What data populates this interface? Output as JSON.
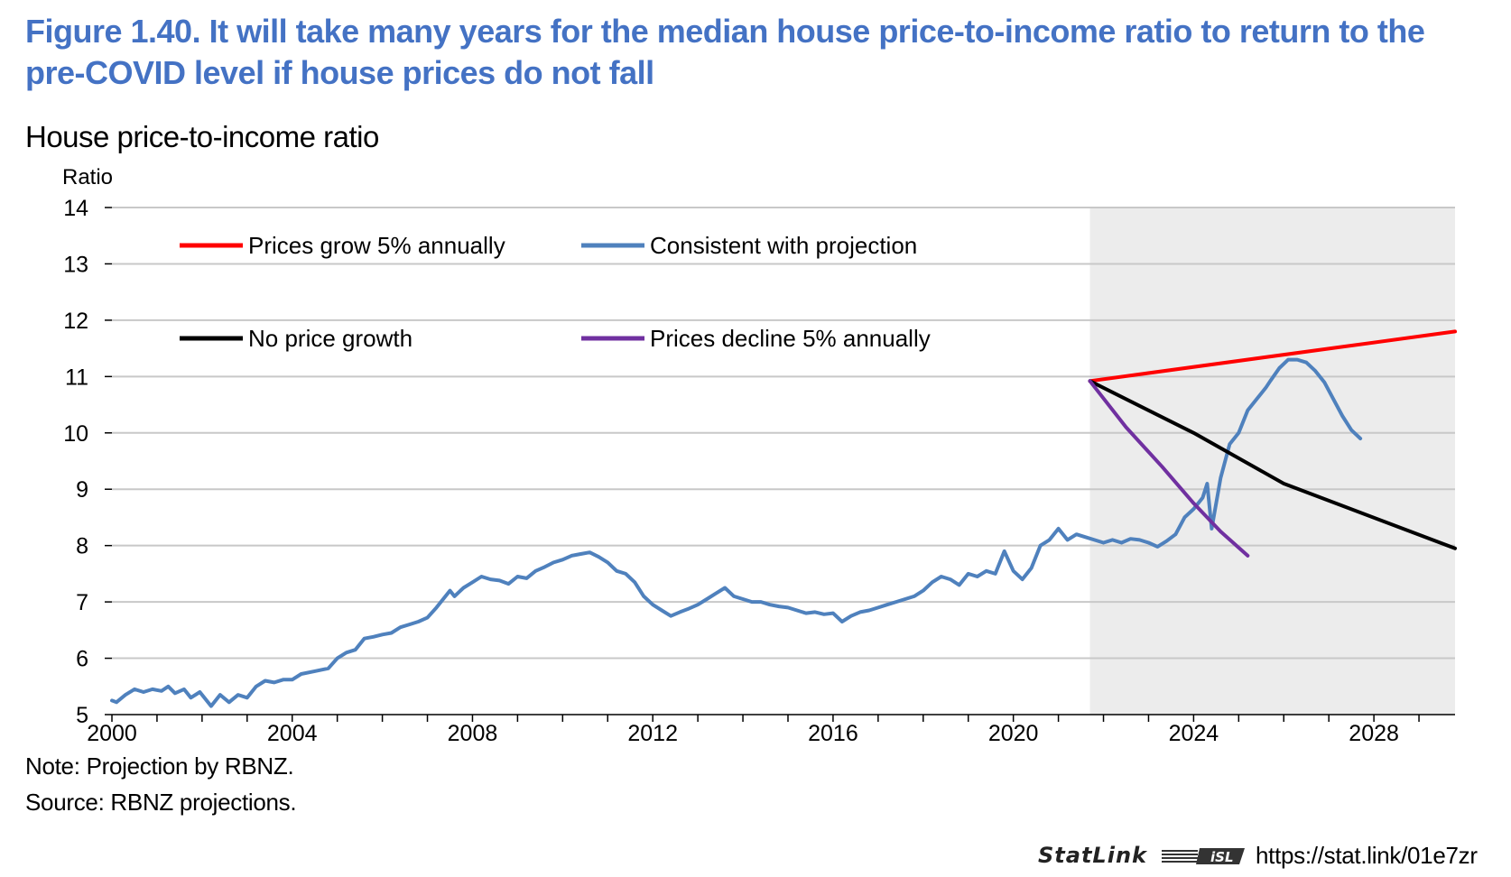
{
  "figure_title": "Figure 1.40. It will take many years for the median house price-to-income ratio to return to the pre-COVID level if house prices do not fall",
  "note": "Note: Projection by RBNZ.",
  "source": "Source: RBNZ projections.",
  "statlink": {
    "brand": "StatLink",
    "url": "https://stat.link/01e7zr"
  },
  "chart_data": {
    "type": "line",
    "title": "House price-to-income ratio",
    "ylabel": "Ratio",
    "xlabel": "",
    "xlim": [
      2000,
      2029.8
    ],
    "ylim": [
      5,
      14
    ],
    "yticks": [
      5,
      6,
      7,
      8,
      9,
      10,
      11,
      12,
      13,
      14
    ],
    "xticks": [
      2000,
      2004,
      2008,
      2012,
      2016,
      2020,
      2024,
      2028
    ],
    "projection_shade": [
      2021.7,
      2029.8
    ],
    "grid": "horizontal",
    "legend_placement": "top-left",
    "series": [
      {
        "name": "Prices grow 5% annually",
        "color": "#ff0000",
        "points": [
          [
            2021.7,
            10.92
          ],
          [
            2029.8,
            11.8
          ]
        ]
      },
      {
        "name": "Consistent with projection",
        "color": "#4f81bd",
        "points": [
          [
            2000.0,
            5.25
          ],
          [
            2000.1,
            5.22
          ],
          [
            2000.3,
            5.35
          ],
          [
            2000.5,
            5.45
          ],
          [
            2000.7,
            5.4
          ],
          [
            2000.9,
            5.45
          ],
          [
            2001.1,
            5.42
          ],
          [
            2001.25,
            5.5
          ],
          [
            2001.4,
            5.38
          ],
          [
            2001.6,
            5.45
          ],
          [
            2001.75,
            5.3
          ],
          [
            2001.95,
            5.4
          ],
          [
            2002.1,
            5.25
          ],
          [
            2002.2,
            5.15
          ],
          [
            2002.4,
            5.35
          ],
          [
            2002.6,
            5.22
          ],
          [
            2002.8,
            5.35
          ],
          [
            2003.0,
            5.3
          ],
          [
            2003.2,
            5.5
          ],
          [
            2003.4,
            5.6
          ],
          [
            2003.6,
            5.57
          ],
          [
            2003.8,
            5.62
          ],
          [
            2004.0,
            5.62
          ],
          [
            2004.2,
            5.72
          ],
          [
            2004.5,
            5.77
          ],
          [
            2004.8,
            5.82
          ],
          [
            2005.0,
            6.0
          ],
          [
            2005.2,
            6.1
          ],
          [
            2005.4,
            6.15
          ],
          [
            2005.6,
            6.35
          ],
          [
            2005.8,
            6.38
          ],
          [
            2006.0,
            6.42
          ],
          [
            2006.2,
            6.45
          ],
          [
            2006.4,
            6.55
          ],
          [
            2006.6,
            6.6
          ],
          [
            2006.8,
            6.65
          ],
          [
            2007.0,
            6.72
          ],
          [
            2007.2,
            6.9
          ],
          [
            2007.4,
            7.1
          ],
          [
            2007.5,
            7.2
          ],
          [
            2007.6,
            7.1
          ],
          [
            2007.8,
            7.25
          ],
          [
            2008.0,
            7.35
          ],
          [
            2008.2,
            7.45
          ],
          [
            2008.4,
            7.4
          ],
          [
            2008.6,
            7.38
          ],
          [
            2008.8,
            7.32
          ],
          [
            2009.0,
            7.45
          ],
          [
            2009.2,
            7.42
          ],
          [
            2009.4,
            7.55
          ],
          [
            2009.6,
            7.62
          ],
          [
            2009.8,
            7.7
          ],
          [
            2010.0,
            7.75
          ],
          [
            2010.2,
            7.82
          ],
          [
            2010.4,
            7.85
          ],
          [
            2010.6,
            7.88
          ],
          [
            2010.8,
            7.8
          ],
          [
            2011.0,
            7.7
          ],
          [
            2011.2,
            7.55
          ],
          [
            2011.4,
            7.5
          ],
          [
            2011.6,
            7.35
          ],
          [
            2011.8,
            7.1
          ],
          [
            2012.0,
            6.95
          ],
          [
            2012.2,
            6.85
          ],
          [
            2012.4,
            6.75
          ],
          [
            2012.6,
            6.82
          ],
          [
            2012.8,
            6.88
          ],
          [
            2013.0,
            6.95
          ],
          [
            2013.2,
            7.05
          ],
          [
            2013.4,
            7.15
          ],
          [
            2013.6,
            7.25
          ],
          [
            2013.8,
            7.1
          ],
          [
            2014.0,
            7.05
          ],
          [
            2014.2,
            7.0
          ],
          [
            2014.4,
            7.0
          ],
          [
            2014.6,
            6.95
          ],
          [
            2014.8,
            6.92
          ],
          [
            2015.0,
            6.9
          ],
          [
            2015.2,
            6.85
          ],
          [
            2015.4,
            6.8
          ],
          [
            2015.6,
            6.82
          ],
          [
            2015.8,
            6.78
          ],
          [
            2016.0,
            6.8
          ],
          [
            2016.2,
            6.65
          ],
          [
            2016.4,
            6.75
          ],
          [
            2016.6,
            6.82
          ],
          [
            2016.8,
            6.85
          ],
          [
            2017.0,
            6.9
          ],
          [
            2017.2,
            6.95
          ],
          [
            2017.4,
            7.0
          ],
          [
            2017.6,
            7.05
          ],
          [
            2017.8,
            7.1
          ],
          [
            2018.0,
            7.2
          ],
          [
            2018.2,
            7.35
          ],
          [
            2018.4,
            7.45
          ],
          [
            2018.6,
            7.4
          ],
          [
            2018.8,
            7.3
          ],
          [
            2019.0,
            7.5
          ],
          [
            2019.2,
            7.45
          ],
          [
            2019.4,
            7.55
          ],
          [
            2019.6,
            7.5
          ],
          [
            2019.8,
            7.9
          ],
          [
            2020.0,
            7.55
          ],
          [
            2020.2,
            7.4
          ],
          [
            2020.4,
            7.6
          ],
          [
            2020.6,
            8.0
          ],
          [
            2020.8,
            8.1
          ],
          [
            2021.0,
            8.3
          ],
          [
            2021.2,
            8.1
          ],
          [
            2021.4,
            8.2
          ],
          [
            2021.6,
            8.15
          ],
          [
            2021.8,
            8.1
          ],
          [
            2022.0,
            8.05
          ],
          [
            2022.2,
            8.1
          ],
          [
            2022.4,
            8.05
          ],
          [
            2022.6,
            8.12
          ],
          [
            2022.8,
            8.1
          ],
          [
            2023.0,
            8.05
          ],
          [
            2023.2,
            7.98
          ],
          [
            2023.4,
            8.08
          ],
          [
            2023.6,
            8.2
          ],
          [
            2023.8,
            8.5
          ],
          [
            2024.0,
            8.65
          ],
          [
            2024.2,
            8.85
          ],
          [
            2024.3,
            9.1
          ],
          [
            2024.4,
            8.3
          ],
          [
            2024.6,
            9.2
          ],
          [
            2024.8,
            9.8
          ],
          [
            2025.0,
            10.0
          ],
          [
            2025.2,
            10.4
          ],
          [
            2025.4,
            10.6
          ],
          [
            2025.6,
            10.8
          ],
          [
            2025.7,
            10.92
          ],
          [
            2025.9,
            11.15
          ],
          [
            2026.1,
            11.3
          ],
          [
            2026.3,
            11.3
          ],
          [
            2026.5,
            11.25
          ],
          [
            2026.7,
            11.1
          ],
          [
            2026.9,
            10.9
          ],
          [
            2027.1,
            10.6
          ],
          [
            2027.3,
            10.3
          ],
          [
            2027.5,
            10.05
          ],
          [
            2027.7,
            9.9
          ]
        ]
      },
      {
        "name": "No price growth",
        "color": "#000000",
        "points": [
          [
            2021.7,
            10.92
          ],
          [
            2024.0,
            10.0
          ],
          [
            2026.0,
            9.1
          ],
          [
            2029.8,
            7.95
          ]
        ]
      },
      {
        "name": "Prices decline 5% annually",
        "color": "#7030a0",
        "points": [
          [
            2021.7,
            10.92
          ],
          [
            2022.5,
            10.1
          ],
          [
            2023.3,
            9.4
          ],
          [
            2024.0,
            8.75
          ],
          [
            2024.6,
            8.25
          ],
          [
            2025.2,
            7.82
          ]
        ]
      }
    ]
  }
}
